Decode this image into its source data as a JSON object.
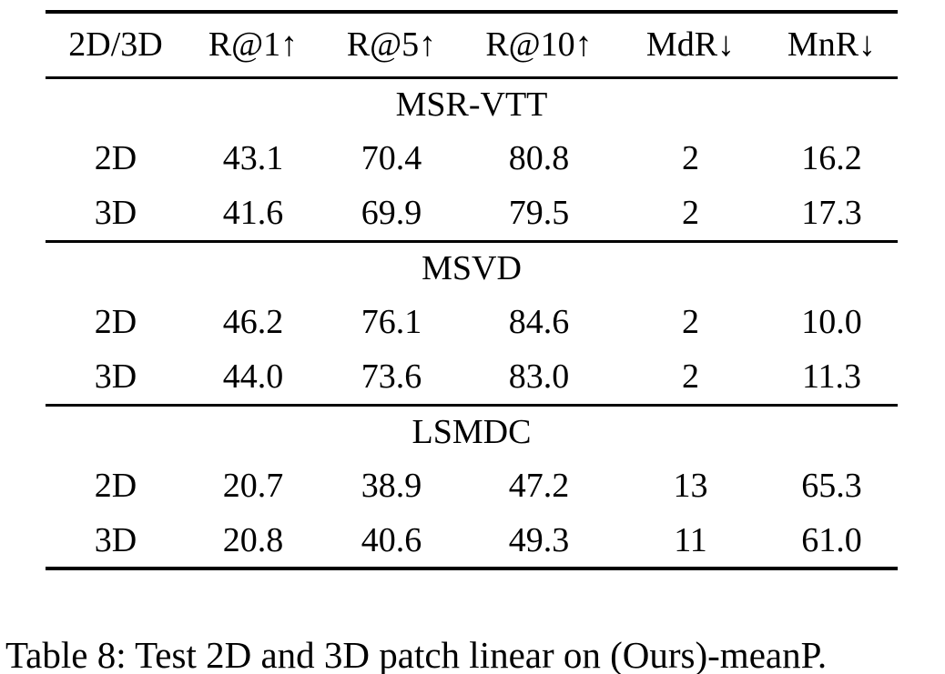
{
  "table": {
    "columns": [
      "2D/3D",
      "R@1↑",
      "R@5↑",
      "R@10↑",
      "MdR↓",
      "MnR↓"
    ],
    "sections": [
      {
        "name": "MSR-VTT",
        "rows": [
          {
            "cells": [
              "2D",
              "43.1",
              "70.4",
              "80.8",
              "2",
              "16.2"
            ]
          },
          {
            "cells": [
              "3D",
              "41.6",
              "69.9",
              "79.5",
              "2",
              "17.3"
            ]
          }
        ]
      },
      {
        "name": "MSVD",
        "rows": [
          {
            "cells": [
              "2D",
              "46.2",
              "76.1",
              "84.6",
              "2",
              "10.0"
            ]
          },
          {
            "cells": [
              "3D",
              "44.0",
              "73.6",
              "83.0",
              "2",
              "11.3"
            ]
          }
        ]
      },
      {
        "name": "LSMDC",
        "rows": [
          {
            "cells": [
              "2D",
              "20.7",
              "38.9",
              "47.2",
              "13",
              "65.3"
            ]
          },
          {
            "cells": [
              "3D",
              "20.8",
              "40.6",
              "49.3",
              "11",
              "61.0"
            ]
          }
        ]
      }
    ]
  },
  "caption": "Table 8: Test 2D and 3D patch linear on (Ours)-meanP.",
  "colors": {
    "text": "#000000",
    "background": "#ffffff",
    "rule": "#000000"
  }
}
